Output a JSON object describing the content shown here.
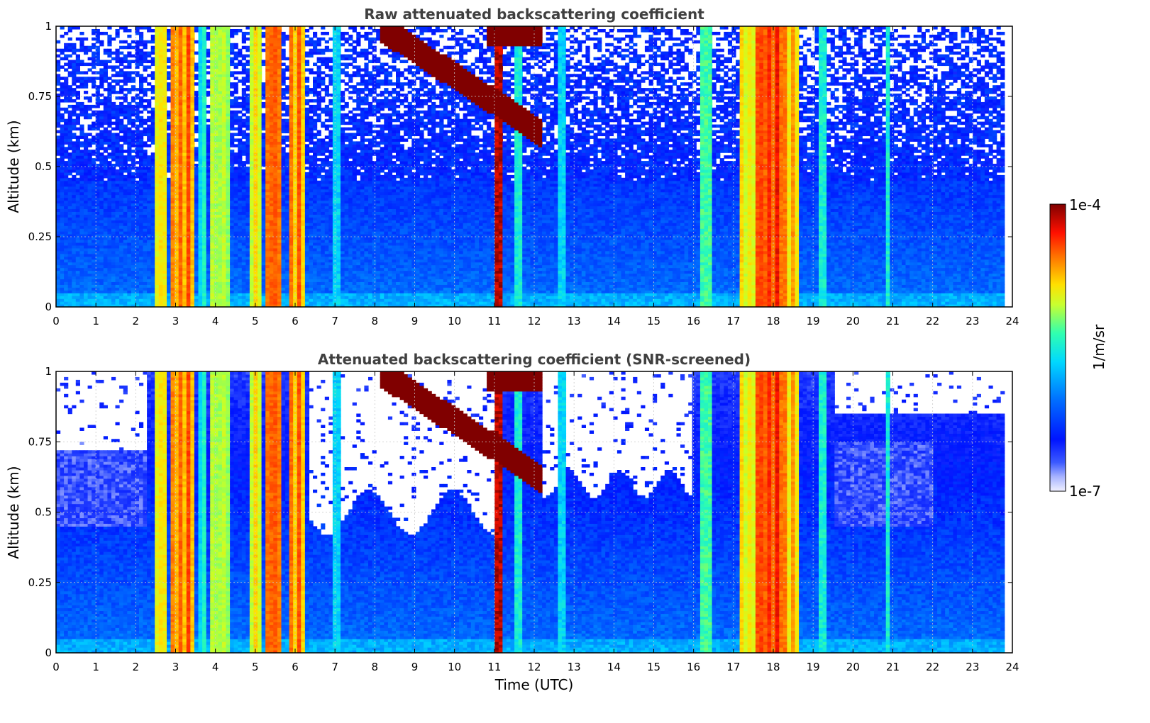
{
  "chart_data": [
    {
      "type": "heatmap",
      "title": "Raw attenuated backscattering coefficient",
      "xlabel": "",
      "ylabel": "Altitude (km)",
      "xlim": [
        0,
        24
      ],
      "ylim": [
        0,
        1
      ],
      "x_ticks": [
        "0",
        "1",
        "2",
        "3",
        "4",
        "5",
        "6",
        "7",
        "8",
        "9",
        "10",
        "11",
        "12",
        "13",
        "14",
        "15",
        "16",
        "17",
        "18",
        "19",
        "20",
        "21",
        "22",
        "23",
        "24"
      ],
      "y_ticks": [
        "0",
        "0.25",
        "0.5",
        "0.75",
        "1"
      ],
      "grid": true,
      "data_extent_x": [
        0,
        23.8
      ],
      "screened": false,
      "events": [
        {
          "name": "fog/precip",
          "x_start": 2.45,
          "x_end": 2.75,
          "level": 0.82
        },
        {
          "name": "fog/precip",
          "x_start": 2.85,
          "x_end": 3.45,
          "level": 0.9
        },
        {
          "name": "fog/precip",
          "x_start": 3.6,
          "x_end": 3.75,
          "level": 0.6
        },
        {
          "name": "fog/precip",
          "x_start": 3.9,
          "x_end": 4.35,
          "level": 0.75
        },
        {
          "name": "fog/precip",
          "x_start": 4.85,
          "x_end": 5.2,
          "level": 0.8
        },
        {
          "name": "fog/precip",
          "x_start": 5.25,
          "x_end": 5.7,
          "level": 0.95
        },
        {
          "name": "fog/precip",
          "x_start": 5.85,
          "x_end": 6.25,
          "level": 0.88
        },
        {
          "name": "thin plume",
          "x_start": 6.95,
          "x_end": 7.15,
          "level": 0.5
        },
        {
          "name": "thin plume",
          "x_start": 11.05,
          "x_end": 11.25,
          "level": 1.0
        },
        {
          "name": "thin plume",
          "x_start": 11.55,
          "x_end": 11.75,
          "level": 0.55
        },
        {
          "name": "thin plume",
          "x_start": 12.55,
          "x_end": 12.75,
          "level": 0.5
        },
        {
          "name": "thin plume",
          "x_start": 16.2,
          "x_end": 16.5,
          "level": 0.6
        },
        {
          "name": "fog/precip",
          "x_start": 17.15,
          "x_end": 17.6,
          "level": 0.8
        },
        {
          "name": "fog/precip",
          "x_start": 17.6,
          "x_end": 18.25,
          "level": 0.97
        },
        {
          "name": "fog/precip",
          "x_start": 18.25,
          "x_end": 18.65,
          "level": 0.85
        },
        {
          "name": "thin plume",
          "x_start": 19.1,
          "x_end": 19.3,
          "level": 0.55
        },
        {
          "name": "thin plume",
          "x_start": 20.8,
          "x_end": 20.9,
          "level": 0.55
        }
      ],
      "cloud_layer": {
        "x_start": 8.1,
        "x_end": 12.2,
        "top_altitude": 1.0,
        "bottom_altitude": 0.62,
        "level": 1.0
      }
    },
    {
      "type": "heatmap",
      "title": "Attenuated backscattering coefficient (SNR-screened)",
      "xlabel": "Time (UTC)",
      "ylabel": "Altitude (km)",
      "xlim": [
        0,
        24
      ],
      "ylim": [
        0,
        1
      ],
      "x_ticks": [
        "0",
        "1",
        "2",
        "3",
        "4",
        "5",
        "6",
        "7",
        "8",
        "9",
        "10",
        "11",
        "12",
        "13",
        "14",
        "15",
        "16",
        "17",
        "18",
        "19",
        "20",
        "21",
        "22",
        "23",
        "24"
      ],
      "y_ticks": [
        "0",
        "0.25",
        "0.5",
        "0.75",
        "1"
      ],
      "grid": true,
      "data_extent_x": [
        0,
        23.8
      ],
      "screened": true
    }
  ],
  "colorbar": {
    "label": "1/m/sr",
    "max_label": "1e-4",
    "min_label": "1e-7",
    "colormap": "jet",
    "screened_out_color": "#ffffff",
    "cloud_color": "#7f0000"
  }
}
